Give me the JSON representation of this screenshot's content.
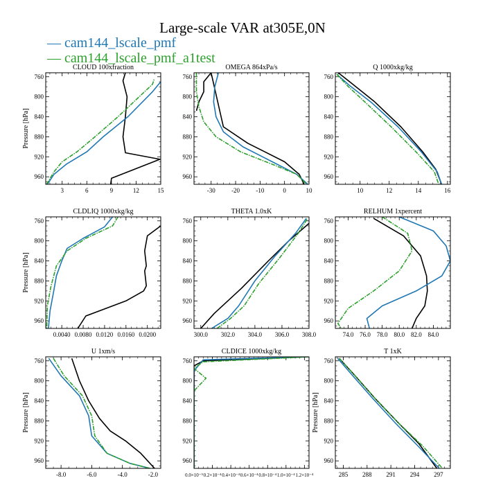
{
  "title": "Large-scale VAR at305E,0N",
  "legend": [
    {
      "name": "cam144_lscale_pmf",
      "color": "#1f77b4"
    },
    {
      "name": "cam144_lscale_pmf_a1test",
      "color": "#2ca02c"
    }
  ],
  "colors": {
    "reference": "#000000",
    "series1": "#1f77b4",
    "series2": "#2ca02c"
  },
  "chart_data": [
    {
      "type": "line",
      "title": "CLOUD  100xfraction",
      "ylabel": "Pressure [hPa]",
      "xlim": [
        1,
        15
      ],
      "ylim": [
        975,
        752
      ],
      "xticks": [
        3,
        6,
        9,
        12,
        15
      ],
      "xtick_labels": [
        "3",
        "6",
        "9",
        "12",
        "15"
      ],
      "yticks": [
        760,
        800,
        840,
        880,
        920,
        960
      ],
      "ytick_labels": [
        "760",
        "800",
        "840",
        "880",
        "920",
        "960"
      ],
      "series": [
        {
          "color": "black",
          "x": [
            8.9,
            9,
            14.9,
            10.7,
            10.4,
            10.7,
            10.9,
            10.4,
            10.7
          ],
          "y": [
            975,
            963,
            925,
            912,
            880,
            840,
            800,
            768,
            752
          ]
        },
        {
          "color": "blue",
          "x": [
            1.2,
            2,
            3.5,
            6,
            8,
            11,
            14,
            15
          ],
          "y": [
            975,
            955,
            935,
            910,
            880,
            840,
            790,
            770
          ]
        },
        {
          "color": "green",
          "x": [
            1.1,
            2,
            3,
            4.8,
            7,
            9.8,
            14,
            14.2
          ],
          "y": [
            975,
            950,
            930,
            910,
            880,
            840,
            775,
            765
          ]
        }
      ]
    },
    {
      "type": "line",
      "title": "OMEGA  864xPa/s",
      "ylabel": "",
      "xlim": [
        -37,
        10
      ],
      "ylim": [
        975,
        752
      ],
      "xticks": [
        -30,
        -20,
        -10,
        0,
        10
      ],
      "xtick_labels": [
        "-30",
        "-20",
        "-10",
        "0",
        "10"
      ],
      "yticks": [
        760,
        800,
        840,
        880,
        920,
        960
      ],
      "ytick_labels": [
        "760",
        "800",
        "840",
        "880",
        "920",
        "960"
      ],
      "series": [
        {
          "color": "black",
          "x": [
            -36,
            -35,
            -33,
            -33,
            -30,
            -25,
            -15,
            0,
            6,
            8
          ],
          "y": [
            828,
            810,
            790,
            770,
            752,
            860,
            893,
            930,
            955,
            975
          ]
        },
        {
          "color": "blue",
          "x": [
            -27,
            -28.5,
            -29,
            -28,
            -25,
            -17,
            -5,
            5,
            9.5
          ],
          "y": [
            752,
            780,
            810,
            840,
            870,
            900,
            930,
            955,
            975
          ]
        },
        {
          "color": "green",
          "x": [
            -36,
            -36,
            -35,
            -33,
            -28,
            -18,
            -5,
            5,
            9
          ],
          "y": [
            752,
            790,
            820,
            850,
            880,
            910,
            935,
            955,
            975
          ]
        }
      ]
    },
    {
      "type": "line",
      "title": "Q  1000xkg/kg",
      "ylabel": "",
      "xlim": [
        8.3,
        16.2
      ],
      "ylim": [
        975,
        752
      ],
      "xticks": [
        10,
        12,
        14,
        16
      ],
      "xtick_labels": [
        "10",
        "12",
        "14",
        "16"
      ],
      "yticks": [
        760,
        800,
        840,
        880,
        920,
        960
      ],
      "ytick_labels": [
        "760",
        "800",
        "840",
        "880",
        "920",
        "960"
      ],
      "series": [
        {
          "color": "black",
          "x": [
            8.5,
            9.5,
            11,
            12.8,
            14.3,
            15.2,
            15.6
          ],
          "y": [
            752,
            775,
            810,
            860,
            910,
            945,
            975
          ]
        },
        {
          "color": "blue",
          "x": [
            8.4,
            9.3,
            10.8,
            12.6,
            14.2,
            15.3,
            15.6
          ],
          "y": [
            755,
            778,
            812,
            860,
            910,
            950,
            975
          ]
        },
        {
          "color": "green",
          "x": [
            8.4,
            9.2,
            10.5,
            12.2,
            13.9,
            15.1,
            15.4
          ],
          "y": [
            755,
            780,
            815,
            862,
            912,
            950,
            975
          ]
        }
      ]
    },
    {
      "type": "line",
      "title": "CLDLIQ  1000xkg/kg",
      "ylabel": "Pressure [hPa]",
      "xlim": [
        0.001,
        0.0225
      ],
      "ylim": [
        975,
        752
      ],
      "xticks": [
        0.004,
        0.008,
        0.012,
        0.016,
        0.02
      ],
      "xtick_labels": [
        "0.0040",
        "0.0080",
        "0.0120",
        "0.0160",
        "0.0200"
      ],
      "yticks": [
        760,
        800,
        840,
        880,
        920,
        960
      ],
      "ytick_labels": [
        "760",
        "800",
        "840",
        "880",
        "920",
        "960"
      ],
      "series": [
        {
          "color": "black",
          "x": [
            0.0225,
            0.02,
            0.0195,
            0.0198,
            0.0195,
            0.0198,
            0.0193,
            0.016,
            0.0085,
            0.007
          ],
          "y": [
            770,
            790,
            820,
            850,
            860,
            890,
            900,
            920,
            950,
            975
          ]
        },
        {
          "color": "blue",
          "x": [
            0.0135,
            0.012,
            0.008,
            0.005,
            0.004,
            0.003,
            0.0025,
            0.0018,
            0.0015
          ],
          "y": [
            752,
            772,
            795,
            815,
            840,
            870,
            900,
            940,
            975
          ]
        },
        {
          "color": "green",
          "x": [
            0.0145,
            0.0135,
            0.0085,
            0.005,
            0.003,
            0.002,
            0.0013,
            0.0012
          ],
          "y": [
            752,
            770,
            795,
            820,
            850,
            890,
            930,
            975
          ]
        }
      ]
    },
    {
      "type": "line",
      "title": "THETA  1.0xK",
      "ylabel": "",
      "xlim": [
        299.5,
        308
      ],
      "ylim": [
        975,
        752
      ],
      "xticks": [
        300,
        302,
        304,
        306,
        308
      ],
      "xtick_labels": [
        "300.0",
        "302.0",
        "304.0",
        "306.0",
        "308.0"
      ],
      "yticks": [
        760,
        800,
        840,
        880,
        920,
        960
      ],
      "ytick_labels": [
        "760",
        "800",
        "840",
        "880",
        "920",
        "960"
      ],
      "series": [
        {
          "color": "black",
          "x": [
            300,
            301,
            303,
            305,
            306.5,
            308
          ],
          "y": [
            975,
            945,
            895,
            840,
            800,
            765
          ]
        },
        {
          "color": "blue",
          "x": [
            300.8,
            302,
            302.8,
            304,
            305.5,
            307,
            307.8
          ],
          "y": [
            975,
            955,
            930,
            880,
            830,
            785,
            755
          ]
        },
        {
          "color": "green",
          "x": [
            301.2,
            302.2,
            303.2,
            304.3,
            305.8,
            307.2,
            307.9
          ],
          "y": [
            975,
            955,
            930,
            885,
            835,
            785,
            755
          ]
        }
      ]
    },
    {
      "type": "line",
      "title": "RELHUM  1xpercent",
      "ylabel": "",
      "xlim": [
        72.5,
        86
      ],
      "ylim": [
        975,
        752
      ],
      "xticks": [
        74,
        76,
        78,
        80,
        82,
        84
      ],
      "xtick_labels": [
        "74.0",
        "76.0",
        "78.0",
        "80.0",
        "82.0",
        "84.0"
      ],
      "yticks": [
        760,
        800,
        840,
        880,
        920,
        960
      ],
      "ytick_labels": [
        "760",
        "800",
        "840",
        "880",
        "920",
        "960"
      ],
      "series": [
        {
          "color": "black",
          "x": [
            77,
            80.5,
            82.5,
            83.2,
            83.3,
            83,
            82,
            81.5
          ],
          "y": [
            755,
            790,
            830,
            870,
            900,
            930,
            955,
            975
          ]
        },
        {
          "color": "blue",
          "x": [
            80,
            84,
            85.5,
            86,
            85,
            82,
            78,
            76.2,
            76.5
          ],
          "y": [
            752,
            780,
            810,
            840,
            870,
            900,
            930,
            955,
            975
          ]
        },
        {
          "color": "green",
          "x": [
            78,
            81,
            81.5,
            80,
            77,
            74,
            72.8,
            73.2
          ],
          "y": [
            752,
            785,
            820,
            860,
            900,
            935,
            965,
            975
          ]
        }
      ]
    },
    {
      "type": "line",
      "title": "U  1xm/s",
      "ylabel": "Pressure [hPa]",
      "xlim": [
        -9,
        -1.5
      ],
      "ylim": [
        975,
        752
      ],
      "xticks": [
        -8,
        -6,
        -4,
        -2
      ],
      "xtick_labels": [
        "-8.0",
        "-6.0",
        "-4.0",
        "-2.0"
      ],
      "yticks": [
        760,
        800,
        840,
        880,
        920,
        960
      ],
      "ytick_labels": [
        "760",
        "800",
        "840",
        "880",
        "920",
        "960"
      ],
      "series": [
        {
          "color": "black",
          "x": [
            -7.3,
            -6.8,
            -6.2,
            -5.5,
            -4.8,
            -3.8,
            -2.8,
            -1.9
          ],
          "y": [
            755,
            800,
            840,
            875,
            900,
            920,
            945,
            975
          ]
        },
        {
          "color": "blue",
          "x": [
            -8.8,
            -8,
            -6.8,
            -6.2,
            -6,
            -5,
            -3.5,
            -2.2
          ],
          "y": [
            755,
            790,
            830,
            870,
            910,
            945,
            965,
            975
          ]
        },
        {
          "color": "green",
          "x": [
            -8.5,
            -7.8,
            -6.6,
            -6,
            -5.8,
            -5,
            -3.5,
            -2.2
          ],
          "y": [
            755,
            790,
            830,
            870,
            910,
            945,
            965,
            975
          ]
        }
      ]
    },
    {
      "type": "line",
      "title": "CLDICE  1000xkg/kg",
      "ylabel": "",
      "xlim": [
        0,
        0.000125
      ],
      "ylim": [
        975,
        752
      ],
      "xticks": [
        0,
        2e-05,
        4e-05,
        6e-05,
        8e-05,
        0.0001,
        0.00012
      ],
      "xtick_labels": [
        "0.0×10⁻⁵",
        "0.2×10⁻⁴",
        "0.4×10⁻⁴",
        "0.6×10⁻⁴",
        "0.8×10⁻⁴",
        "1.0×10⁻⁴",
        "1.2×10⁻⁴"
      ],
      "yticks": [
        760,
        800,
        840,
        880,
        920,
        960
      ],
      "ytick_labels": [
        "760",
        "800",
        "840",
        "880",
        "920",
        "960"
      ],
      "series": [
        {
          "color": "black",
          "x": [
            0.000122,
            1e-05,
            0,
            0
          ],
          "y": [
            752,
            760,
            770,
            975
          ]
        },
        {
          "color": "blue",
          "x": [
            0.000122,
            1e-05,
            0,
            0
          ],
          "y": [
            752,
            758,
            780,
            975
          ]
        },
        {
          "color": "green",
          "x": [
            0.000125,
            1e-05,
            0,
            1.3e-05,
            0,
            0,
            0
          ],
          "y": [
            752,
            762,
            775,
            795,
            820,
            840,
            975
          ]
        }
      ]
    },
    {
      "type": "line",
      "title": "T  1xK",
      "ylabel": "Pressure [hPa]",
      "xlim": [
        284,
        298.5
      ],
      "ylim": [
        975,
        752
      ],
      "xticks": [
        285,
        288,
        291,
        294,
        297
      ],
      "xtick_labels": [
        "285",
        "288",
        "291",
        "294",
        "297"
      ],
      "yticks": [
        760,
        800,
        840,
        880,
        920,
        960
      ],
      "ytick_labels": [
        "760",
        "800",
        "840",
        "880",
        "920",
        "960"
      ],
      "series": [
        {
          "color": "black",
          "x": [
            284.5,
            286.5,
            289,
            292,
            294.5,
            296.8
          ],
          "y": [
            755,
            790,
            835,
            885,
            925,
            975
          ]
        },
        {
          "color": "blue",
          "x": [
            284.3,
            286.2,
            288.7,
            291.6,
            294.4,
            297.1
          ],
          "y": [
            755,
            790,
            835,
            885,
            930,
            975
          ]
        },
        {
          "color": "green",
          "x": [
            284.5,
            286.5,
            289,
            292,
            295,
            297.5
          ],
          "y": [
            755,
            790,
            835,
            885,
            930,
            975
          ]
        }
      ]
    }
  ]
}
